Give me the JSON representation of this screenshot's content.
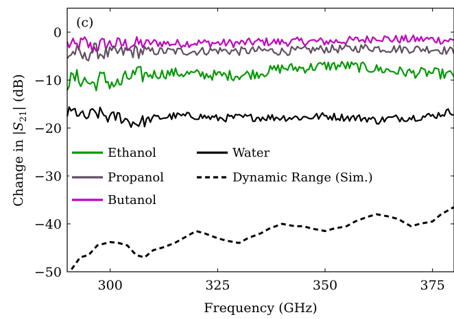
{
  "chart_data": {
    "type": "line",
    "panel_label": "(c)",
    "xlabel": "Frequency (GHz)",
    "ylabel": "Change in |S21| (dB)",
    "ylabel_parts": {
      "pre": "Change in |",
      "s": "S",
      "sub": "21",
      "post": "| (dB)"
    },
    "xlim": [
      290,
      380
    ],
    "ylim": [
      -50,
      5
    ],
    "xticks": [
      300,
      325,
      350,
      375
    ],
    "yticks": [
      0,
      -10,
      -20,
      -30,
      -40,
      -50
    ],
    "xtick_labels": [
      "300",
      "325",
      "350",
      "375"
    ],
    "ytick_labels": [
      "0",
      "−10",
      "−20",
      "−30",
      "−40",
      "−50"
    ],
    "grid": false,
    "legend_position": "middle-left",
    "series": [
      {
        "name": "Butanol",
        "color": "#bf00bf",
        "style": "solid",
        "x": [
          290,
          292,
          294,
          296,
          298,
          300,
          305,
          310,
          315,
          320,
          325,
          330,
          335,
          340,
          345,
          350,
          355,
          360,
          362,
          365,
          370,
          375,
          380
        ],
        "y": [
          -2.5,
          -3.0,
          -2.0,
          -3.5,
          -2.5,
          -2.5,
          -2.5,
          -2.2,
          -2.4,
          -2.2,
          -2.3,
          -2.3,
          -2.0,
          -2.1,
          -1.9,
          -2.0,
          -1.8,
          -1.5,
          -1.0,
          -1.5,
          -1.5,
          -1.5,
          -1.8
        ]
      },
      {
        "name": "Propanol",
        "color": "#5f4f5f",
        "style": "solid",
        "x": [
          290,
          292,
          294,
          296,
          298,
          300,
          305,
          310,
          315,
          320,
          325,
          330,
          335,
          340,
          345,
          350,
          355,
          360,
          365,
          370,
          375,
          380
        ],
        "y": [
          -5.0,
          -4.0,
          -5.5,
          -3.5,
          -4.5,
          -4.5,
          -4.0,
          -4.0,
          -4.0,
          -4.0,
          -3.8,
          -4.0,
          -3.8,
          -4.0,
          -3.8,
          -3.5,
          -3.5,
          -3.2,
          -3.5,
          -3.5,
          -3.5,
          -4.0
        ]
      },
      {
        "name": "Ethanol",
        "color": "#009900",
        "style": "solid",
        "x": [
          290,
          292,
          294,
          296,
          298,
          300,
          302,
          304,
          306,
          310,
          315,
          320,
          325,
          330,
          335,
          340,
          345,
          350,
          355,
          360,
          365,
          370,
          375,
          380
        ],
        "y": [
          -10.5,
          -9.5,
          -10.0,
          -11.0,
          -9.5,
          -10.5,
          -11.0,
          -9.5,
          -9.0,
          -8.8,
          -8.5,
          -8.8,
          -9.0,
          -9.0,
          -8.5,
          -7.5,
          -7.5,
          -7.0,
          -7.0,
          -7.5,
          -8.0,
          -8.5,
          -8.5,
          -9.0
        ]
      },
      {
        "name": "Water",
        "color": "#000000",
        "style": "solid",
        "x": [
          290,
          292,
          294,
          296,
          298,
          300,
          302,
          304,
          306,
          308,
          310,
          315,
          320,
          325,
          330,
          335,
          340,
          345,
          350,
          355,
          360,
          362,
          365,
          370,
          375,
          378,
          380
        ],
        "y": [
          -17.0,
          -16.5,
          -18.0,
          -17.0,
          -17.0,
          -18.0,
          -17.5,
          -18.5,
          -19.0,
          -18.5,
          -18.0,
          -17.5,
          -17.5,
          -18.0,
          -17.8,
          -17.8,
          -17.8,
          -17.8,
          -17.5,
          -17.8,
          -18.0,
          -18.5,
          -18.0,
          -17.8,
          -17.5,
          -16.8,
          -16.5
        ]
      },
      {
        "name": "Dynamic Range (Sim.)",
        "color": "#000000",
        "style": "dashed",
        "x": [
          291,
          293,
          295,
          297,
          300,
          302,
          304,
          306,
          308,
          310,
          312,
          315,
          317,
          320,
          322,
          325,
          327,
          330,
          332,
          335,
          337,
          340,
          343,
          345,
          347,
          350,
          352,
          355,
          357,
          360,
          362,
          365,
          367,
          370,
          372,
          375,
          377,
          380
        ],
        "y": [
          -49.5,
          -47.0,
          -46.5,
          -44.5,
          -43.8,
          -44.0,
          -44.5,
          -46.5,
          -47.0,
          -45.5,
          -45.0,
          -44.0,
          -43.0,
          -41.5,
          -42.0,
          -43.0,
          -43.5,
          -44.0,
          -43.0,
          -42.0,
          -41.0,
          -40.0,
          -40.5,
          -40.5,
          -41.0,
          -41.5,
          -41.0,
          -40.5,
          -39.5,
          -38.5,
          -38.0,
          -38.5,
          -39.0,
          -40.5,
          -40.0,
          -39.5,
          -38.0,
          -36.5
        ]
      }
    ],
    "legend": [
      {
        "label": "Ethanol",
        "color": "#009900",
        "style": "solid"
      },
      {
        "label": "Propanol",
        "color": "#5f4f5f",
        "style": "solid"
      },
      {
        "label": "Butanol",
        "color": "#bf00bf",
        "style": "solid"
      },
      {
        "label": "Water",
        "color": "#000000",
        "style": "solid"
      },
      {
        "label": "Dynamic Range (Sim.)",
        "color": "#000000",
        "style": "dashed"
      }
    ]
  }
}
